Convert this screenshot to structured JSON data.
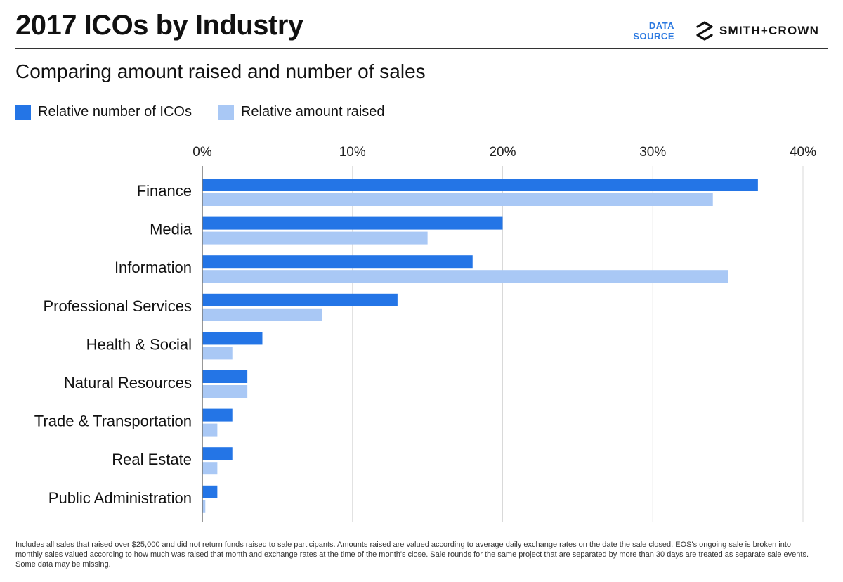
{
  "header": {
    "title": "2017 ICOs by Industry",
    "data_source_line1": "DATA",
    "data_source_line2": "SOURCE",
    "brand": "SMITH+CROWN"
  },
  "subtitle": "Comparing amount raised and number of sales",
  "colors": {
    "series_count": "#2475e6",
    "series_amount": "#a9c8f5",
    "grid": "#d9d9d9",
    "axis": "#777777",
    "accent": "#2a78e0"
  },
  "chart_data": {
    "type": "bar",
    "orientation": "horizontal",
    "title": "2017 ICOs by Industry",
    "categories": [
      "Finance",
      "Media",
      "Information",
      "Professional Services",
      "Health & Social",
      "Natural Resources",
      "Trade & Transportation",
      "Real Estate",
      "Public Administration"
    ],
    "series": [
      {
        "name": "Relative number of ICOs",
        "values": [
          37,
          20,
          18,
          13,
          4,
          3,
          2,
          2,
          1
        ]
      },
      {
        "name": "Relative amount raised",
        "values": [
          34,
          15,
          35,
          8,
          2,
          3,
          1,
          1,
          0.2
        ]
      }
    ],
    "xlim": [
      0,
      40
    ],
    "xticks": [
      0,
      10,
      20,
      30,
      40
    ],
    "tick_labels": [
      "0%",
      "10%",
      "20%",
      "30%",
      "40%"
    ],
    "grid": true,
    "legend_position": "top-left"
  },
  "footnote": "Includes all sales that raised over $25,000 and did not return funds raised to sale participants. Amounts raised are valued according to average daily exchange rates on the date the sale closed. EOS's ongoing sale is broken into monthly sales valued according to how much was raised that month and exchange rates at the time of the month's close. Sale rounds for the same project that are separated by more than 30 days are treated as separate sale events. Some data may be missing."
}
